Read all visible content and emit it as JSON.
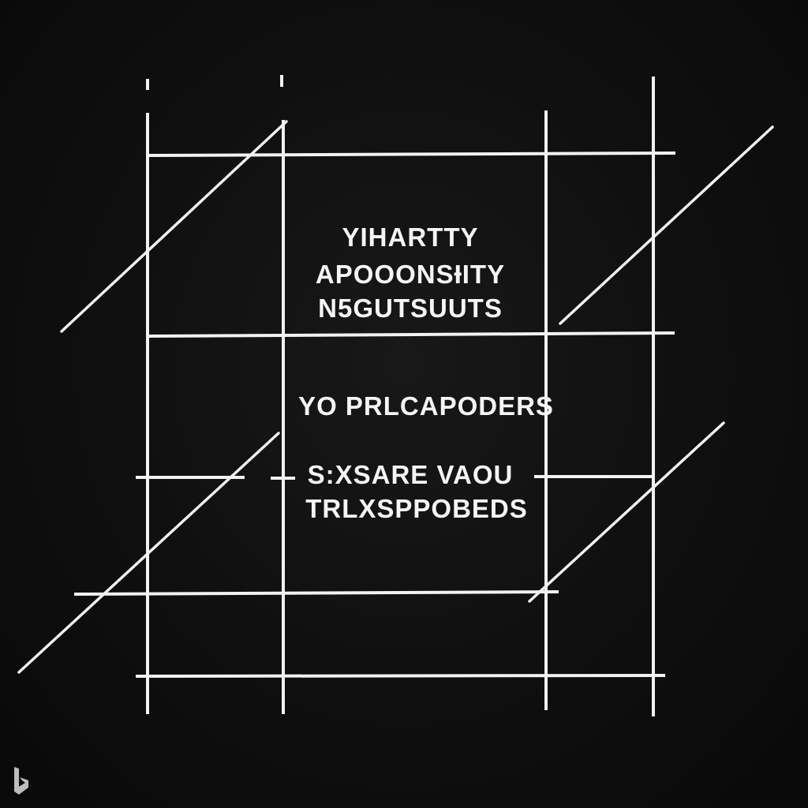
{
  "diagram": {
    "colors": {
      "background": "#0f0f0f",
      "line": "#f2f2f2",
      "text": "#f5f5f5"
    },
    "labels": [
      "YIHARTTY",
      "APOOONSƗITY",
      "N5GUTSUUTS",
      "YO PRLCAPODERS",
      "S:XSARE VAOU",
      "TRLXSPPOBEDS"
    ],
    "watermark_icon": "bing-logo-icon"
  }
}
